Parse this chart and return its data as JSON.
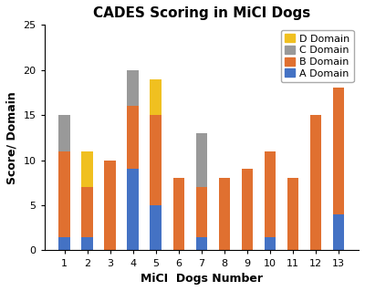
{
  "title": "CADES Scoring in MiCI Dogs",
  "xlabel": "MiCI  Dogs Number",
  "ylabel": "Score/ Domain",
  "dogs": [
    1,
    2,
    3,
    4,
    5,
    6,
    7,
    8,
    9,
    10,
    11,
    12,
    13
  ],
  "A_domain": [
    1.5,
    1.5,
    0,
    9,
    5,
    0,
    1.5,
    0,
    0,
    1.5,
    0,
    0,
    4
  ],
  "B_domain": [
    9.5,
    5.5,
    10,
    7,
    10,
    8,
    5.5,
    8,
    9,
    9.5,
    8,
    15,
    14
  ],
  "C_domain": [
    4,
    0,
    0,
    4,
    0,
    0,
    6,
    0,
    0,
    0,
    0,
    0,
    0
  ],
  "D_domain": [
    0,
    4,
    0,
    0,
    4,
    0,
    0,
    0,
    0,
    0,
    0,
    0,
    0
  ],
  "color_A": "#4472C4",
  "color_B": "#E07030",
  "color_C": "#999999",
  "color_D": "#F0C020",
  "ylim": [
    0,
    25
  ],
  "yticks": [
    0,
    5,
    10,
    15,
    20,
    25
  ],
  "bg_color": "#FFFFFF",
  "title_fontsize": 11,
  "axis_label_fontsize": 9,
  "tick_fontsize": 8,
  "legend_fontsize": 8
}
